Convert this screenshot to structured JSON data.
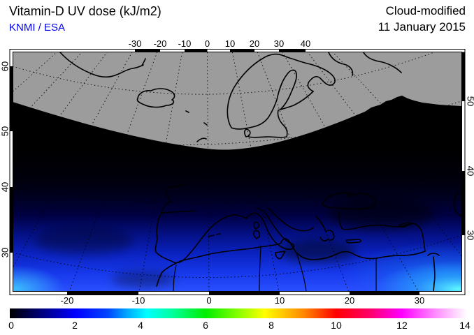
{
  "header": {
    "title": "Vitamin-D UV dose (kJ/m2)",
    "credit": "KNMI / ESA",
    "mode": "Cloud-modified",
    "date": "11 January 2015"
  },
  "map": {
    "polar_night_gray": "#9c9c9c",
    "axes": {
      "top": [
        "-30",
        "-20",
        "-10",
        "0",
        "10",
        "20",
        "30",
        "40"
      ],
      "bottom": [
        "-20",
        "-10",
        "0",
        "10",
        "20",
        "30"
      ],
      "left": [
        "60",
        "50",
        "40",
        "30"
      ],
      "right": [
        "50",
        "40",
        "30"
      ]
    }
  },
  "colorbar": {
    "labels": [
      "0",
      "2",
      "4",
      "6",
      "8",
      "10",
      "12",
      "14"
    ],
    "min": 0,
    "max": 14,
    "stops": [
      {
        "value": 0,
        "color": "#000000"
      },
      {
        "value": 1,
        "color": "#000080"
      },
      {
        "value": 2,
        "color": "#0000ff"
      },
      {
        "value": 3,
        "color": "#0044ff"
      },
      {
        "value": 3.6,
        "color": "#00aaff"
      },
      {
        "value": 4.2,
        "color": "#00ffff"
      },
      {
        "value": 5,
        "color": "#00ff99"
      },
      {
        "value": 6,
        "color": "#00ee00"
      },
      {
        "value": 7,
        "color": "#88ff00"
      },
      {
        "value": 7.8,
        "color": "#ffff00"
      },
      {
        "value": 9,
        "color": "#ff8800"
      },
      {
        "value": 10,
        "color": "#ff0000"
      },
      {
        "value": 11,
        "color": "#ff0066"
      },
      {
        "value": 12,
        "color": "#ff00ff"
      },
      {
        "value": 13,
        "color": "#ff88ff"
      },
      {
        "value": 14,
        "color": "#ffffff"
      }
    ]
  }
}
